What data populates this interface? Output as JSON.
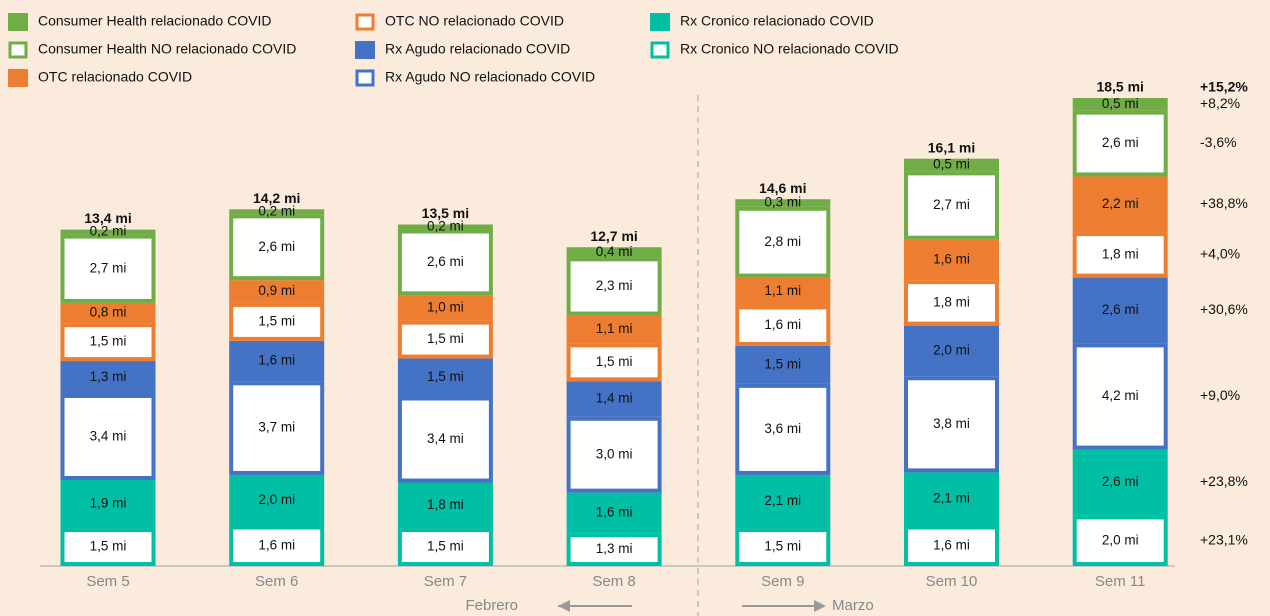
{
  "chart_data": {
    "type": "stacked-bar",
    "categories": [
      "Sem 5",
      "Sem 6",
      "Sem 7",
      "Sem 8",
      "Sem 9",
      "Sem 10",
      "Sem 11"
    ],
    "series": [
      {
        "name": "Consumer Health relacionado COVID",
        "color": "#70ad47",
        "hollow": false,
        "values": [
          0.2,
          0.2,
          0.2,
          0.4,
          0.3,
          0.5,
          0.5
        ],
        "value_labels": [
          "0,2 mi",
          "0,2 mi",
          "0,2 mi",
          "0,4 mi",
          "0,3 mi",
          "0,5 mi",
          "0,5 mi"
        ],
        "change": 8.2,
        "change_label": "+8,2%"
      },
      {
        "name": "Consumer Health NO relacionado COVID",
        "color": "#70ad47",
        "hollow": true,
        "values": [
          2.7,
          2.6,
          2.6,
          2.3,
          2.8,
          2.7,
          2.6
        ],
        "value_labels": [
          "2,7 mi",
          "2,6 mi",
          "2,6 mi",
          "2,3 mi",
          "2,8 mi",
          "2,7 mi",
          "2,6 mi"
        ],
        "change": -3.6,
        "change_label": "-3,6%"
      },
      {
        "name": "OTC relacionado COVID",
        "color": "#ed7d31",
        "hollow": false,
        "values": [
          0.8,
          0.9,
          1.0,
          1.1,
          1.1,
          1.6,
          2.2
        ],
        "value_labels": [
          "0,8 mi",
          "0,9 mi",
          "1,0 mi",
          "1,1 mi",
          "1,1 mi",
          "1,6 mi",
          "2,2 mi"
        ],
        "change": 38.8,
        "change_label": "+38,8%"
      },
      {
        "name": "OTC NO relacionado COVID",
        "color": "#ed7d31",
        "hollow": true,
        "values": [
          1.5,
          1.5,
          1.5,
          1.5,
          1.6,
          1.8,
          1.8
        ],
        "value_labels": [
          "1,5 mi",
          "1,5 mi",
          "1,5 mi",
          "1,5 mi",
          "1,6 mi",
          "1,8 mi",
          "1,8 mi"
        ],
        "change": 4.0,
        "change_label": "+4,0%"
      },
      {
        "name": "Rx Agudo relacionado COVID",
        "color": "#4472c4",
        "hollow": false,
        "values": [
          1.3,
          1.6,
          1.5,
          1.4,
          1.5,
          2.0,
          2.6
        ],
        "value_labels": [
          "1,3 mi",
          "1,6 mi",
          "1,5 mi",
          "1,4 mi",
          "1,5 mi",
          "2,0 mi",
          "2,6 mi"
        ],
        "change": 30.6,
        "change_label": "+30,6%"
      },
      {
        "name": "Rx Agudo NO relacionado COVID",
        "color": "#4472c4",
        "hollow": true,
        "values": [
          3.4,
          3.7,
          3.4,
          3.0,
          3.6,
          3.8,
          4.2
        ],
        "value_labels": [
          "3,4 mi",
          "3,7 mi",
          "3,4 mi",
          "3,0 mi",
          "3,6 mi",
          "3,8 mi",
          "4,2 mi"
        ],
        "change": 9.0,
        "change_label": "+9,0%"
      },
      {
        "name": "Rx Cronico relacionado COVID",
        "color": "#00bfa5",
        "hollow": false,
        "values": [
          1.9,
          2.0,
          1.8,
          1.6,
          2.1,
          2.1,
          2.6
        ],
        "value_labels": [
          "1,9 mi",
          "2,0 mi",
          "1,8 mi",
          "1,6 mi",
          "2,1 mi",
          "2,1 mi",
          "2,6 mi"
        ],
        "change": 23.8,
        "change_label": "+23,8%"
      },
      {
        "name": "Rx Cronico NO relacionado COVID",
        "color": "#00bfa5",
        "hollow": true,
        "values": [
          1.5,
          1.6,
          1.5,
          1.3,
          1.5,
          1.6,
          2.0
        ],
        "value_labels": [
          "1,5 mi",
          "1,6 mi",
          "1,5 mi",
          "1,3 mi",
          "1,5 mi",
          "1,6 mi",
          "2,0 mi"
        ],
        "change": 23.1,
        "change_label": "+23,1%"
      }
    ],
    "totals": [
      13.4,
      14.2,
      13.5,
      12.7,
      14.6,
      16.1,
      18.5
    ],
    "total_labels": [
      "13,4 mi",
      "14,2 mi",
      "13,5 mi",
      "12,7 mi",
      "14,6 mi",
      "16,1 mi",
      "18,5 mi"
    ],
    "total_change": 15.2,
    "total_change_label": "+15,2%",
    "annotations": [
      "Febrero",
      "Marzo"
    ]
  }
}
